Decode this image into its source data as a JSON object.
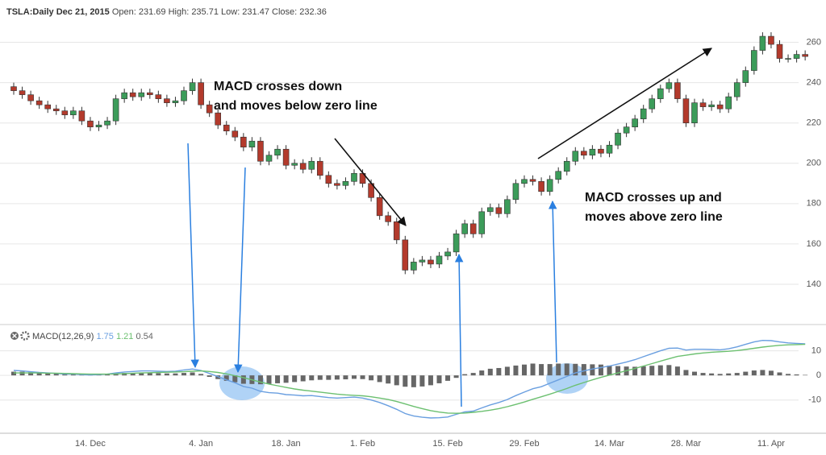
{
  "chart_data": [
    {
      "type": "candlestick",
      "title": "TSLA:Daily Dec 21, 2015",
      "subtitle": "Open: 231.69 High: 235.71 Low: 231.47 Close: 232.36",
      "annotations": [
        [
          "MACD crosses down",
          "and moves below zero line"
        ],
        [
          "MACD crosses up and",
          "moves above zero line"
        ]
      ],
      "up_color": "#3c9c5a",
      "down_color": "#b33a2c",
      "ylim": [
        122,
        279
      ],
      "yticks": [
        140,
        160,
        180,
        200,
        220,
        240,
        260
      ],
      "grid": true,
      "open": [
        238,
        236,
        234,
        231,
        229,
        227,
        226,
        224,
        226,
        221,
        218,
        219,
        221,
        232,
        235,
        233,
        235,
        234,
        232,
        230,
        231,
        236,
        240,
        229,
        225,
        219,
        216,
        213,
        208,
        211,
        201,
        204,
        207,
        199,
        200,
        197,
        201,
        194,
        190,
        189,
        191,
        195,
        190,
        183,
        174,
        171,
        162,
        147,
        151,
        152,
        150,
        154,
        156,
        165,
        170,
        165,
        176,
        178,
        175,
        182,
        190,
        192,
        191,
        186,
        192,
        196,
        201,
        206,
        204,
        207,
        205,
        209,
        215,
        218,
        222,
        227,
        232,
        237,
        240,
        232,
        220,
        230,
        228,
        229,
        227,
        233,
        240,
        246,
        256,
        263,
        259,
        252,
        252,
        254
      ],
      "high": [
        240,
        238,
        236,
        233,
        231,
        229,
        228,
        228,
        228,
        223,
        221,
        223,
        234,
        237,
        237,
        237,
        237,
        236,
        234,
        233,
        238,
        242,
        242,
        231,
        227,
        221,
        218,
        215,
        213,
        213,
        206,
        209,
        209,
        202,
        202,
        203,
        203,
        196,
        192,
        193,
        197,
        197,
        192,
        185,
        176,
        173,
        164,
        153,
        154,
        154,
        156,
        158,
        167,
        172,
        172,
        178,
        180,
        180,
        184,
        192,
        194,
        194,
        193,
        194,
        198,
        203,
        208,
        208,
        209,
        209,
        211,
        217,
        220,
        224,
        229,
        234,
        239,
        242,
        242,
        234,
        232,
        232,
        231,
        231,
        235,
        242,
        248,
        258,
        265,
        265,
        261,
        254,
        256,
        256
      ],
      "low": [
        234,
        232,
        229,
        227,
        225,
        224,
        222,
        222,
        219,
        216,
        216,
        217,
        219,
        230,
        231,
        231,
        232,
        230,
        228,
        228,
        229,
        234,
        227,
        223,
        217,
        214,
        211,
        206,
        206,
        199,
        199,
        202,
        197,
        197,
        195,
        195,
        192,
        188,
        187,
        187,
        189,
        188,
        181,
        172,
        169,
        160,
        145,
        145,
        149,
        148,
        148,
        152,
        154,
        163,
        163,
        163,
        174,
        173,
        173,
        180,
        188,
        189,
        184,
        184,
        190,
        194,
        199,
        202,
        202,
        203,
        203,
        207,
        213,
        216,
        220,
        225,
        230,
        235,
        230,
        218,
        218,
        226,
        226,
        225,
        225,
        231,
        238,
        244,
        254,
        257,
        250,
        250,
        250,
        251
      ],
      "close": [
        236,
        234,
        231,
        229,
        227,
        226,
        224,
        226,
        221,
        218,
        219,
        221,
        232,
        235,
        233,
        235,
        234,
        232,
        230,
        231,
        236,
        240,
        229,
        225,
        219,
        216,
        213,
        208,
        211,
        201,
        204,
        207,
        199,
        200,
        197,
        201,
        194,
        190,
        189,
        191,
        195,
        190,
        183,
        174,
        171,
        162,
        147,
        151,
        152,
        150,
        154,
        156,
        165,
        170,
        165,
        176,
        178,
        175,
        182,
        190,
        192,
        191,
        186,
        192,
        196,
        201,
        206,
        204,
        207,
        205,
        209,
        215,
        218,
        222,
        227,
        232,
        237,
        240,
        232,
        220,
        230,
        228,
        229,
        227,
        233,
        240,
        246,
        256,
        263,
        259,
        252,
        252,
        254,
        253
      ]
    },
    {
      "type": "line",
      "title": "MACD(12,26,9)",
      "ylim": [
        -23.5,
        20
      ],
      "yticks": [
        -10,
        0,
        10
      ],
      "grid": true,
      "categories": [
        null,
        null,
        null,
        null,
        null,
        null,
        null,
        null,
        null,
        "14. Dec",
        null,
        null,
        null,
        null,
        null,
        null,
        null,
        null,
        null,
        null,
        null,
        null,
        "4. Jan",
        null,
        null,
        null,
        null,
        null,
        null,
        null,
        null,
        null,
        "18. Jan",
        null,
        null,
        null,
        null,
        null,
        null,
        null,
        null,
        "1. Feb",
        null,
        null,
        null,
        null,
        null,
        null,
        null,
        null,
        null,
        "15. Feb",
        null,
        null,
        null,
        null,
        null,
        null,
        null,
        null,
        "29. Feb",
        null,
        null,
        null,
        null,
        null,
        null,
        null,
        null,
        null,
        "14. Mar",
        null,
        null,
        null,
        null,
        null,
        null,
        null,
        null,
        "28. Mar",
        null,
        null,
        null,
        null,
        null,
        null,
        null,
        null,
        null,
        "11. Apr",
        null,
        null,
        null,
        null
      ],
      "series": [
        {
          "type": "line",
          "color": "#6a9fe0",
          "current": 1.75,
          "values": [
            2,
            1.8,
            1.5,
            1.2,
            1,
            0.8,
            0.5,
            0.5,
            0.3,
            0.2,
            0.3,
            0.5,
            1,
            1.4,
            1.6,
            1.8,
            1.8,
            1.7,
            1.6,
            1.7,
            2.2,
            2.6,
            2,
            0.8,
            -0.5,
            -1.8,
            -3,
            -4.5,
            -5.2,
            -6.5,
            -7,
            -7.2,
            -7.8,
            -8,
            -8.3,
            -8.2,
            -8.6,
            -9,
            -9.2,
            -9,
            -8.8,
            -9.2,
            -10,
            -11,
            -12.3,
            -13.8,
            -15.5,
            -16.5,
            -17,
            -17.3,
            -17.2,
            -16.9,
            -15.8,
            -14.8,
            -14.5,
            -13.2,
            -12,
            -11,
            -9.8,
            -8.2,
            -6.8,
            -5.4,
            -4.6,
            -3.2,
            -1.8,
            -0.4,
            1,
            1.8,
            2.6,
            3.2,
            3.8,
            4.6,
            5.4,
            6.4,
            7.6,
            8.8,
            10,
            11,
            11.1,
            10.3,
            10.6,
            10.6,
            10.5,
            10.4,
            10.8,
            11.6,
            12.6,
            13.6,
            14.2,
            14.1,
            13.6,
            13.2,
            13,
            12.8
          ]
        },
        {
          "type": "line",
          "color": "#6cc070",
          "current": 1.21,
          "values": [
            1,
            1,
            1,
            1,
            0.9,
            0.9,
            0.8,
            0.7,
            0.6,
            0.5,
            0.5,
            0.5,
            0.6,
            0.7,
            0.9,
            1,
            1.1,
            1.2,
            1.3,
            1.4,
            1.5,
            1.7,
            1.8,
            1.6,
            1.2,
            0.6,
            -0.1,
            -0.9,
            -1.8,
            -2.7,
            -3.5,
            -4.2,
            -4.9,
            -5.5,
            -6,
            -6.4,
            -6.8,
            -7.2,
            -7.6,
            -7.9,
            -8.1,
            -8.3,
            -8.7,
            -9.2,
            -9.8,
            -10.6,
            -11.6,
            -12.6,
            -13.5,
            -14.3,
            -14.9,
            -15.3,
            -15.4,
            -15.3,
            -15,
            -14.6,
            -14.1,
            -13.5,
            -12.7,
            -11.8,
            -10.8,
            -9.7,
            -8.7,
            -7.6,
            -6.5,
            -5.3,
            -4,
            -2.9,
            -1.8,
            -0.8,
            0.1,
            1,
            1.9,
            2.8,
            3.8,
            4.8,
            5.8,
            6.8,
            7.7,
            8.2,
            8.7,
            9.1,
            9.4,
            9.6,
            9.8,
            10.1,
            10.5,
            11,
            11.5,
            11.9,
            12.2,
            12.4,
            12.5,
            12.6
          ]
        },
        {
          "type": "bar",
          "color": "#666666",
          "current": 0.54,
          "values": [
            1.5,
            1.5,
            1.3,
            1.2,
            1,
            0.8,
            0.6,
            0.5,
            0.4,
            0.3,
            0.3,
            0.5,
            0.8,
            1,
            1,
            1,
            1,
            0.9,
            0.8,
            0.8,
            1,
            1.2,
            0.6,
            -0.6,
            -1.5,
            -2.2,
            -2.8,
            -3.4,
            -3.5,
            -3.6,
            -3.5,
            -3.2,
            -3,
            -2.7,
            -2.4,
            -2,
            -1.8,
            -1.8,
            -1.7,
            -1.6,
            -1.4,
            -1.5,
            -2,
            -2.7,
            -3.3,
            -4,
            -4.6,
            -4.8,
            -4.5,
            -4,
            -3.2,
            -2.2,
            -1,
            0.5,
            1,
            2,
            2.7,
            3,
            3.5,
            4,
            4.4,
            4.8,
            4.6,
            4.6,
            4.8,
            4.8,
            4.7,
            4.6,
            4.5,
            4.4,
            4,
            3.8,
            3.6,
            3.5,
            3.7,
            3.9,
            4.1,
            4.2,
            3.6,
            2.2,
            1.5,
            1,
            0.8,
            0.6,
            0.8,
            1,
            1.5,
            2,
            2.2,
            1.9,
            1.2,
            0.6,
            0.4,
            0.2
          ]
        }
      ]
    }
  ]
}
